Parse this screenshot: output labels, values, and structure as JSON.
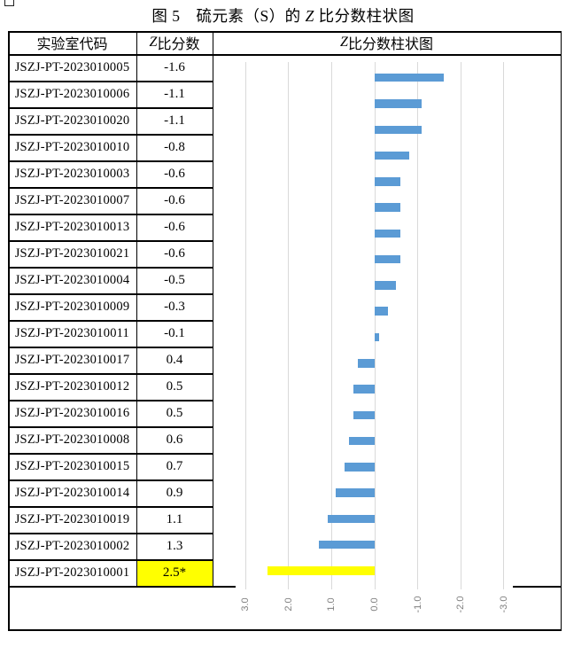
{
  "title": {
    "pre": "图 5　硫元素（S）的 ",
    "z": "Z",
    "post": " 比分数柱状图"
  },
  "table": {
    "header": {
      "col1": "实验室代码",
      "col2_z": "Z",
      "col2_rest": " 比分数",
      "col3_z": "Z",
      "col3_rest": " 比分数柱状图"
    },
    "rows": [
      {
        "code": "JSZJ-PT-2023010005",
        "z": "-1.6"
      },
      {
        "code": "JSZJ-PT-2023010006",
        "z": "-1.1"
      },
      {
        "code": "JSZJ-PT-2023010020",
        "z": "-1.1"
      },
      {
        "code": "JSZJ-PT-2023010010",
        "z": "-0.8"
      },
      {
        "code": "JSZJ-PT-2023010003",
        "z": "-0.6"
      },
      {
        "code": "JSZJ-PT-2023010007",
        "z": "-0.6"
      },
      {
        "code": "JSZJ-PT-2023010013",
        "z": "-0.6"
      },
      {
        "code": "JSZJ-PT-2023010021",
        "z": "-0.6"
      },
      {
        "code": "JSZJ-PT-2023010004",
        "z": "-0.5"
      },
      {
        "code": "JSZJ-PT-2023010009",
        "z": "-0.3"
      },
      {
        "code": "JSZJ-PT-2023010011",
        "z": "-0.1"
      },
      {
        "code": "JSZJ-PT-2023010017",
        "z": "0.4"
      },
      {
        "code": "JSZJ-PT-2023010012",
        "z": "0.5"
      },
      {
        "code": "JSZJ-PT-2023010016",
        "z": "0.5"
      },
      {
        "code": "JSZJ-PT-2023010008",
        "z": "0.6"
      },
      {
        "code": "JSZJ-PT-2023010015",
        "z": "0.7"
      },
      {
        "code": "JSZJ-PT-2023010014",
        "z": "0.9"
      },
      {
        "code": "JSZJ-PT-2023010019",
        "z": "1.1"
      },
      {
        "code": "JSZJ-PT-2023010002",
        "z": "1.3"
      },
      {
        "code": "JSZJ-PT-2023010001",
        "z": "2.5*",
        "highlight": true
      }
    ]
  },
  "chart_data": {
    "type": "bar",
    "orientation": "horizontal",
    "x_axis_reversed": true,
    "categories": [
      "JSZJ-PT-2023010005",
      "JSZJ-PT-2023010006",
      "JSZJ-PT-2023010020",
      "JSZJ-PT-2023010010",
      "JSZJ-PT-2023010003",
      "JSZJ-PT-2023010007",
      "JSZJ-PT-2023010013",
      "JSZJ-PT-2023010021",
      "JSZJ-PT-2023010004",
      "JSZJ-PT-2023010009",
      "JSZJ-PT-2023010011",
      "JSZJ-PT-2023010017",
      "JSZJ-PT-2023010012",
      "JSZJ-PT-2023010016",
      "JSZJ-PT-2023010008",
      "JSZJ-PT-2023010015",
      "JSZJ-PT-2023010014",
      "JSZJ-PT-2023010019",
      "JSZJ-PT-2023010002",
      "JSZJ-PT-2023010001"
    ],
    "values": [
      -1.6,
      -1.1,
      -1.1,
      -0.8,
      -0.6,
      -0.6,
      -0.6,
      -0.6,
      -0.5,
      -0.3,
      -0.1,
      0.4,
      0.5,
      0.5,
      0.6,
      0.7,
      0.9,
      1.1,
      1.3,
      2.5
    ],
    "axis_ticks": [
      "3.0",
      "2.0",
      "1.0",
      "0.0",
      "-1.0",
      "-2.0",
      "-3.0"
    ],
    "axis_range": [
      3.5,
      -3.5
    ],
    "grid": true,
    "bar_color": "#5B9BD5",
    "highlight_color": "#FFFF00",
    "highlight_index": 19,
    "gridline_color": "#D9D9D9",
    "axis_label_color": "#808080"
  }
}
